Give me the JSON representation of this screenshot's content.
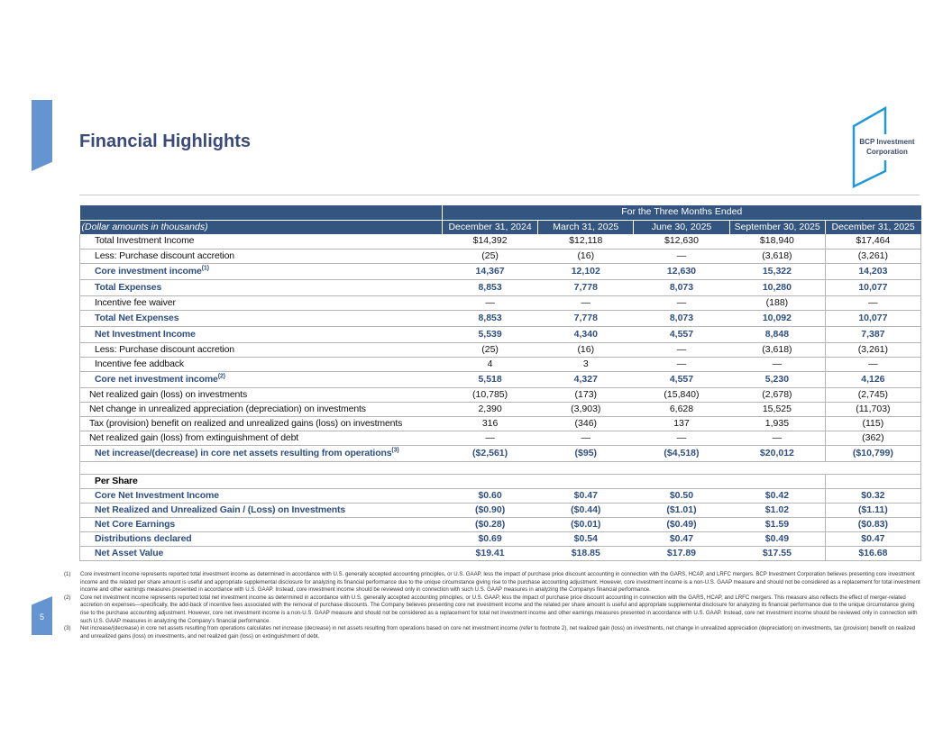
{
  "title": "Financial Highlights",
  "logo": {
    "line1": "BCP Investment",
    "line2": "Corporation"
  },
  "table": {
    "period_header": "For the Three Months Ended",
    "units_label": "(Dollar amounts in thousands)",
    "columns": [
      "December 31, 2024",
      "March 31, 2025",
      "June 30, 2025",
      "September 30, 2025",
      "December 31, 2025"
    ],
    "rows": [
      {
        "label": "Total Investment Income",
        "values": [
          "$14,392",
          "$12,118",
          "$12,630",
          "$18,940",
          "$17,464"
        ]
      },
      {
        "label": "Less: Purchase discount accretion",
        "values": [
          "(25)",
          "(16)",
          "—",
          "(3,618)",
          "(3,261)"
        ]
      },
      {
        "label": "Core investment income",
        "sup": "(1)",
        "values": [
          "14,367",
          "12,102",
          "12,630",
          "15,322",
          "14,203"
        ]
      },
      {
        "label": "Total Expenses",
        "values": [
          "8,853",
          "7,778",
          "8,073",
          "10,280",
          "10,077"
        ]
      },
      {
        "label": "Incentive fee waiver",
        "values": [
          "—",
          "—",
          "—",
          "(188)",
          "—"
        ]
      },
      {
        "label": "Total Net Expenses",
        "values": [
          "8,853",
          "7,778",
          "8,073",
          "10,092",
          "10,077"
        ]
      },
      {
        "label": "Net Investment Income",
        "values": [
          "5,539",
          "4,340",
          "4,557",
          "8,848",
          "7,387"
        ]
      },
      {
        "label": "Less: Purchase discount accretion",
        "values": [
          "(25)",
          "(16)",
          "—",
          "(3,618)",
          "(3,261)"
        ]
      },
      {
        "label": "Incentive fee addback",
        "values": [
          "4",
          "3",
          "—",
          "—",
          "—"
        ]
      },
      {
        "label": "Core net investment income",
        "sup": "(2)",
        "values": [
          "5,518",
          "4,327",
          "4,557",
          "5,230",
          "4,126"
        ]
      },
      {
        "label": "Net realized gain (loss) on investments",
        "values": [
          "(10,785)",
          "(173)",
          "(15,840)",
          "(2,678)",
          "(2,745)"
        ]
      },
      {
        "label": "Net change in unrealized appreciation (depreciation) on investments",
        "values": [
          "2,390",
          "(3,903)",
          "6,628",
          "15,525",
          "(11,703)"
        ]
      },
      {
        "label": "Tax (provision) benefit on realized and unrealized gains (loss) on investments",
        "values": [
          "316",
          "(346)",
          "137",
          "1,935",
          "(115)"
        ]
      },
      {
        "label": "Net realized gain (loss) from extinguishment of debt",
        "values": [
          "—",
          "—",
          "—",
          "—",
          "(362)"
        ]
      },
      {
        "label": "Net increase/(decrease) in core net assets resulting from operations",
        "sup": "(3)",
        "values": [
          "($2,561)",
          "($95)",
          "($4,518)",
          "$20,012",
          "($10,799)"
        ]
      }
    ],
    "per_share_label": "Per Share",
    "per_share_rows": [
      {
        "label": "Core Net Investment Income",
        "values": [
          "$0.60",
          "$0.47",
          "$0.50",
          "$0.42",
          "$0.32"
        ]
      },
      {
        "label": "Net Realized and Unrealized Gain / (Loss) on Investments",
        "values": [
          "($0.90)",
          "($0.44)",
          "($1.01)",
          "$1.02",
          "($1.11)"
        ]
      },
      {
        "label": "Net Core Earnings",
        "values": [
          "($0.28)",
          "($0.01)",
          "($0.49)",
          "$1.59",
          "($0.83)"
        ]
      },
      {
        "label": "Distributions declared",
        "values": [
          "$0.69",
          "$0.54",
          "$0.47",
          "$0.49",
          "$0.47"
        ]
      },
      {
        "label": "Net Asset Value",
        "values": [
          "$19.41",
          "$18.85",
          "$17.89",
          "$17.55",
          "$16.68"
        ]
      }
    ]
  },
  "footnotes": [
    {
      "num": "(1)",
      "text": "Core investment income represents reported total investment income as determined in accordance with U.S. generally accepted accounting principles, or U.S. GAAP, less the impact of purchase price discount accounting in connection with the GARS, HCAP, and LRFC mergers. BCP Investment Corporation believes presenting core investment income and the related per share amount is useful and appropriate supplemental disclosure for analyzing its financial performance due to the unique circumstance giving rise to the purchase accounting adjustment. However, core investment income is a non-U.S. GAAP measure and should not be considered as a replacement for total investment income and other earnings measures presented in accordance with U.S. GAAP. Instead, core investment income should be reviewed only in connection with such U.S. GAAP measures in analyzing the Companys financial performance."
    },
    {
      "num": "(2)",
      "text": "Core net investment income represents reported total net investment income as determined in accordance with U.S. generally accepted accounting principles, or U.S. GAAP, less the impact of purchase price discount accounting in connection with the GARS, HCAP, and LRFC mergers. This measure also reflects the effect of merger-related accretion on expenses—specifically, the add-back of incentive fees associated with the removal of purchase discounts. The Company believes presenting core net investment income and the related per share amount is useful and appropriate supplemental disclosure for analyzing its financial performance due to the unique circumstance giving rise to the purchase accounting adjustment. However, core net investment income is a non-U.S. GAAP measure and should not be considered as a replacement for total net investment income and other earnings measures presented in accordance with U.S. GAAP. Instead, core net investment income should be reviewed only in connection with such U.S. GAAP measures in analyzing the Company's financial performance."
    },
    {
      "num": "(3)",
      "text": "Net increase/(decrease) in core net assets resulting from operations calculates net increase (decrease) in net assets resulting from operations based on core net investment income (refer to footnote 2), net realized gain (loss) on investments, net change in unrealized appreciation (depreciation) on investments, tax (provision) benefit on realized and unrealized gains (loss) on investments, and net realized gain (loss) on extinguishment of debt."
    }
  ],
  "page_number": "5",
  "colors": {
    "header_bg": "#33557f",
    "accent": "#6495d2",
    "emphasis_text": "#2f4f80",
    "title": "#3b4a79",
    "logo_blue": "#1f9ad6"
  }
}
